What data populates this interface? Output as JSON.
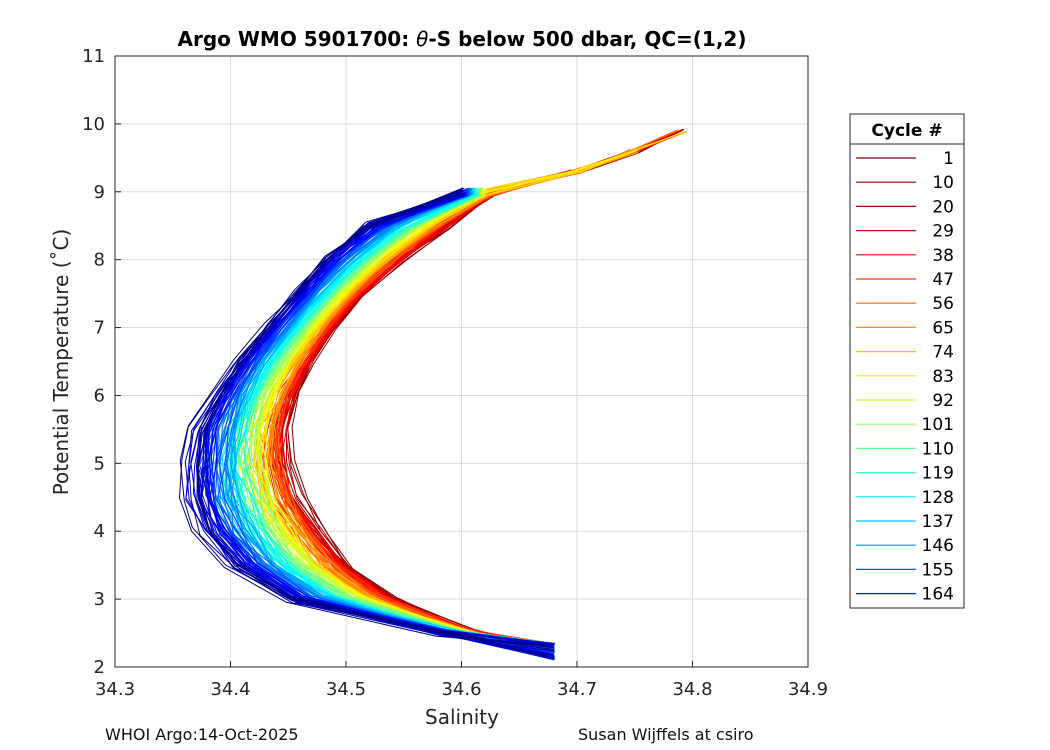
{
  "chart_data": {
    "type": "line",
    "title_prefix": "Argo WMO 5901700: ",
    "title_theta": "θ",
    "title_suffix": "-S below 500 dbar,  QC=(1,2)",
    "xlabel": "Salinity",
    "ylabel": "Potential Temperature (˚C)",
    "xlim": [
      34.3,
      34.9
    ],
    "ylim": [
      2,
      11
    ],
    "xticks": [
      "34.3",
      "34.4",
      "34.5",
      "34.6",
      "34.7",
      "34.8",
      "34.9"
    ],
    "yticks": [
      "2",
      "3",
      "4",
      "5",
      "6",
      "7",
      "8",
      "9",
      "10",
      "11"
    ],
    "grid": true,
    "legend_title": "Cycle #",
    "legend_position": "right-outside",
    "legend": [
      {
        "label": "1",
        "color": "#800000"
      },
      {
        "label": "10",
        "color": "#9a0000"
      },
      {
        "label": "20",
        "color": "#b80000"
      },
      {
        "label": "29",
        "color": "#d40000"
      },
      {
        "label": "38",
        "color": "#f01400"
      },
      {
        "label": "47",
        "color": "#ff3a00"
      },
      {
        "label": "56",
        "color": "#ff6600"
      },
      {
        "label": "65",
        "color": "#ff9400"
      },
      {
        "label": "74",
        "color": "#ffc000"
      },
      {
        "label": "83",
        "color": "#ecec00"
      },
      {
        "label": "92",
        "color": "#c0ff30"
      },
      {
        "label": "101",
        "color": "#90ff60"
      },
      {
        "label": "110",
        "color": "#60ff90"
      },
      {
        "label": "119",
        "color": "#30ffc0"
      },
      {
        "label": "128",
        "color": "#00f0f0"
      },
      {
        "label": "137",
        "color": "#00c0ff"
      },
      {
        "label": "146",
        "color": "#0090ff"
      },
      {
        "label": "155",
        "color": "#0058ff"
      },
      {
        "label": "164",
        "color": "#0020ff"
      }
    ],
    "profile_shape": {
      "temp": [
        2.1,
        2.5,
        3.0,
        3.5,
        4.0,
        4.5,
        5.0,
        5.5,
        6.0,
        6.5,
        7.0,
        7.5,
        8.0,
        8.5,
        9.0
      ],
      "early_salinity": [
        34.68,
        34.61,
        34.54,
        34.5,
        34.475,
        34.455,
        34.445,
        34.445,
        34.455,
        34.47,
        34.49,
        34.515,
        34.55,
        34.59,
        34.63
      ],
      "late_salinity": [
        34.68,
        34.58,
        34.45,
        34.4,
        34.375,
        34.365,
        34.365,
        34.37,
        34.385,
        34.405,
        34.43,
        34.455,
        34.48,
        34.515,
        34.6
      ]
    },
    "early_warm_extension": {
      "temp": [
        9.0,
        9.3,
        9.6,
        9.9,
        10.05
      ],
      "salinity": [
        34.64,
        34.7,
        34.75,
        34.79,
        34.81
      ]
    }
  },
  "footer": {
    "left": "WHOI Argo:14-Oct-2025",
    "right": "Susan Wijffels at csiro"
  }
}
